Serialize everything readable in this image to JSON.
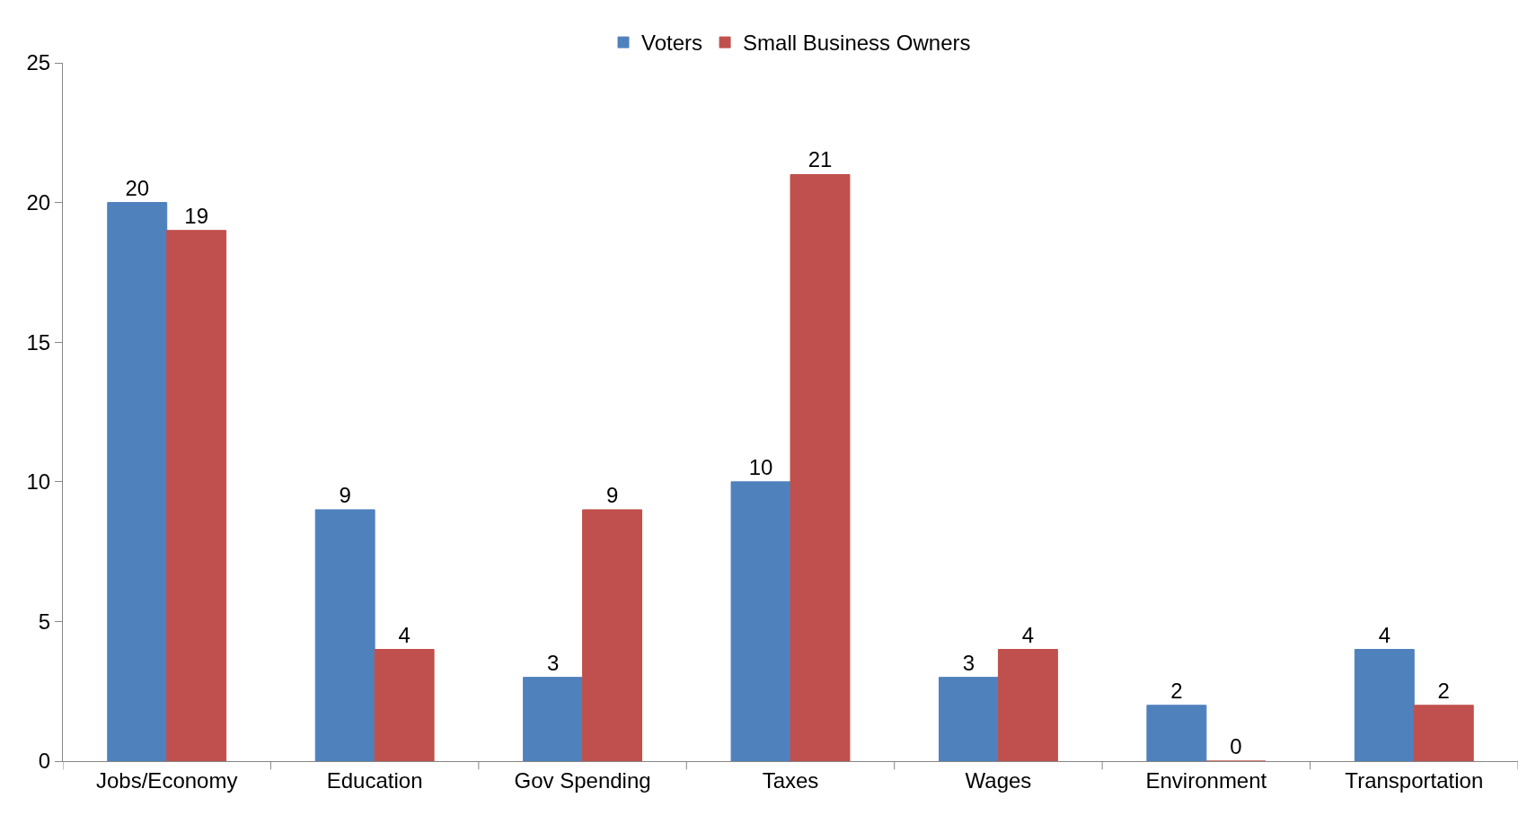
{
  "chart_data": {
    "type": "bar",
    "categories": [
      "Jobs/Economy",
      "Education",
      "Gov Spending",
      "Taxes",
      "Wages",
      "Environment",
      "Transportation"
    ],
    "series": [
      {
        "name": "Voters",
        "color": "#4f81bd",
        "values": [
          20,
          9,
          3,
          10,
          3,
          2,
          4
        ]
      },
      {
        "name": "Small Business Owners",
        "color": "#c0504d",
        "values": [
          19,
          4,
          9,
          21,
          4,
          0,
          2
        ]
      }
    ],
    "ylim": [
      0,
      25
    ],
    "yticks": [
      0,
      5,
      10,
      15,
      20,
      25
    ],
    "data_labels": true,
    "legend": "top",
    "grid": false
  }
}
